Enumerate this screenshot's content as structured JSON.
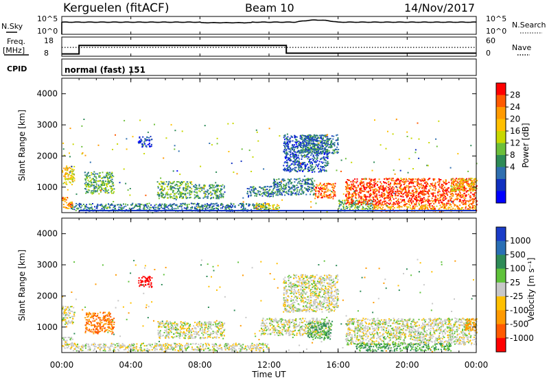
{
  "header": {
    "title": "Kerguelen (fitACF)",
    "beam": "Beam 10",
    "date": "14/Nov/2017"
  },
  "nsky": {
    "label": "N.Sky",
    "ticks_left": [
      "10^5",
      "10^0"
    ],
    "ticks_right": [
      "10^5",
      "10^0"
    ],
    "right_label": "N.Search"
  },
  "freq": {
    "label_line1": "Freq.",
    "label_line2": "[MHz]",
    "ticks_left": [
      "18",
      "8"
    ],
    "ticks_right": [
      "60",
      "0"
    ],
    "right_label": "Nave",
    "levels": [
      {
        "t0": 0.0,
        "t1": 1.0,
        "value": 9.2
      },
      {
        "t0": 1.0,
        "t1": 13.0,
        "value": 13.6
      },
      {
        "t0": 13.0,
        "t1": 24.0,
        "value": 9.6
      }
    ],
    "nave_level": 12.6
  },
  "cpid": {
    "label": "CPID",
    "text": "normal (fast) 151"
  },
  "time_axis": {
    "label": "Time UT",
    "range": [
      0,
      24
    ],
    "ticks": [
      "00:00",
      "04:00",
      "08:00",
      "12:00",
      "16:00",
      "20:00",
      "00:00"
    ]
  },
  "power_panel": {
    "ylabel": "Slant Range [km]",
    "yticks": [
      "4000",
      "3000",
      "2000",
      "1000"
    ],
    "colorbar_label": "Power [dB]",
    "colorbar_ticks": [
      "28",
      "24",
      "20",
      "16",
      "12",
      "8",
      "4"
    ],
    "colorbar_colors": [
      "#ff0000",
      "#ff5a00",
      "#ff9a00",
      "#ffc000",
      "#c8d800",
      "#6cbf3a",
      "#2e8b57",
      "#2f6fb0",
      "#1030c0",
      "#0000ff"
    ]
  },
  "velocity_panel": {
    "ylabel": "Slant Range [km]",
    "yticks": [
      "4000",
      "3000",
      "2000",
      "1000"
    ],
    "colorbar_label": "Velocity [m s⁻¹]",
    "colorbar_ticks": [
      "1000",
      "500",
      "100",
      "25",
      "-25",
      "-100",
      "-500",
      "-1000"
    ],
    "colorbar_colors": [
      "#1a3cc8",
      "#2a6fb5",
      "#2e8b57",
      "#5fc23a",
      "#c8c8c8",
      "#ffc000",
      "#ff9a00",
      "#ff5a00",
      "#ff0000"
    ]
  },
  "chart_data": {
    "type": "heatmap",
    "x_range_hours": [
      0,
      24
    ],
    "y_range_km": [
      180,
      4500
    ],
    "power_blobs": [
      {
        "t0": 0.0,
        "t1": 0.7,
        "r0": 1100,
        "r1": 1700,
        "db": 20
      },
      {
        "t0": 0.0,
        "t1": 0.6,
        "r0": 300,
        "r1": 700,
        "db": 24
      },
      {
        "t0": 1.3,
        "t1": 3.0,
        "r0": 800,
        "r1": 1500,
        "db": 14
      },
      {
        "t0": 4.4,
        "t1": 5.2,
        "r0": 2300,
        "r1": 2650,
        "db": 6
      },
      {
        "t0": 5.5,
        "t1": 7.5,
        "r0": 650,
        "r1": 1200,
        "db": 14
      },
      {
        "t0": 7.6,
        "t1": 9.4,
        "r0": 650,
        "r1": 1100,
        "db": 12
      },
      {
        "t0": 0.5,
        "t1": 12.0,
        "r0": 250,
        "r1": 500,
        "db": 10
      },
      {
        "t0": 10.7,
        "t1": 12.2,
        "r0": 700,
        "r1": 1050,
        "db": 10
      },
      {
        "t0": 11.2,
        "t1": 12.6,
        "r0": 250,
        "r1": 500,
        "db": 20
      },
      {
        "t0": 12.2,
        "t1": 14.6,
        "r0": 750,
        "r1": 1300,
        "db": 10
      },
      {
        "t0": 12.8,
        "t1": 15.4,
        "r0": 1500,
        "r1": 2700,
        "db": 8
      },
      {
        "t0": 13.8,
        "t1": 16.0,
        "r0": 2100,
        "r1": 2700,
        "db": 10
      },
      {
        "t0": 14.6,
        "t1": 15.8,
        "r0": 650,
        "r1": 1150,
        "db": 26
      },
      {
        "t0": 16.0,
        "t1": 18.0,
        "r0": 250,
        "r1": 600,
        "db": 14
      },
      {
        "t0": 16.4,
        "t1": 24.0,
        "r0": 450,
        "r1": 1300,
        "db": 28
      },
      {
        "t0": 18.0,
        "t1": 24.0,
        "r0": 250,
        "r1": 450,
        "db": 24
      },
      {
        "t0": 22.5,
        "t1": 24.0,
        "r0": 900,
        "r1": 1300,
        "db": 20
      }
    ],
    "velocity_blobs": [
      {
        "t0": 0.0,
        "t1": 0.7,
        "r0": 1100,
        "r1": 1700,
        "v": 0
      },
      {
        "t0": 0.0,
        "t1": 0.6,
        "r0": 300,
        "r1": 700,
        "v": -10
      },
      {
        "t0": 1.3,
        "t1": 3.0,
        "r0": 800,
        "r1": 1500,
        "v": -300
      },
      {
        "t0": 4.4,
        "t1": 5.2,
        "r0": 2300,
        "r1": 2650,
        "v": -800
      },
      {
        "t0": 5.5,
        "t1": 9.4,
        "r0": 650,
        "r1": 1200,
        "v": 0
      },
      {
        "t0": 0.5,
        "t1": 12.0,
        "r0": 250,
        "r1": 500,
        "v": 0
      },
      {
        "t0": 11.5,
        "t1": 15.5,
        "r0": 750,
        "r1": 1300,
        "v": 0
      },
      {
        "t0": 12.8,
        "t1": 16.0,
        "r0": 1500,
        "r1": 2700,
        "v": 0
      },
      {
        "t0": 14.2,
        "t1": 15.6,
        "r0": 600,
        "r1": 1150,
        "v": 60
      },
      {
        "t0": 16.4,
        "t1": 24.0,
        "r0": 450,
        "r1": 1300,
        "v": 0
      },
      {
        "t0": 17.0,
        "t1": 22.5,
        "r0": 250,
        "r1": 500,
        "v": 60
      },
      {
        "t0": 23.3,
        "t1": 24.0,
        "r0": 900,
        "r1": 1300,
        "v": -200
      }
    ]
  }
}
